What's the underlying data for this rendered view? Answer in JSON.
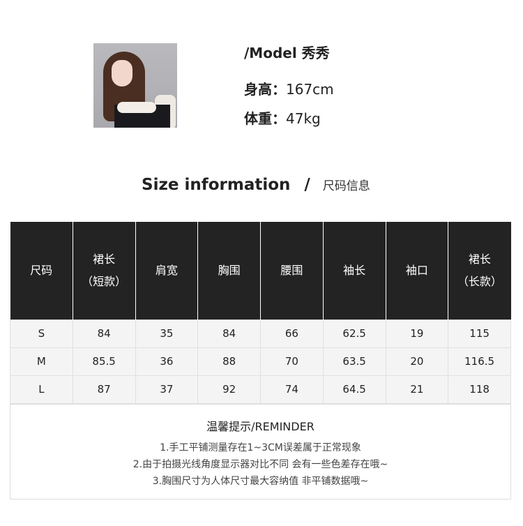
{
  "model": {
    "name": "/Model 秀秀",
    "height_label": "身高：",
    "height": "167cm",
    "weight_label": "体重：",
    "weight": "47kg"
  },
  "section": {
    "title": "Size information",
    "separator": "/",
    "subtitle": "尺码信息"
  },
  "table": {
    "headers": [
      "尺码",
      "裙长\n（短款）",
      "肩宽",
      "胸围",
      "腰围",
      "袖长",
      "袖口",
      "裙长\n（长款）"
    ],
    "rows": [
      [
        "S",
        "84",
        "35",
        "84",
        "66",
        "62.5",
        "19",
        "115"
      ],
      [
        "M",
        "85.5",
        "36",
        "88",
        "70",
        "63.5",
        "20",
        "116.5"
      ],
      [
        "L",
        "87",
        "37",
        "92",
        "74",
        "64.5",
        "21",
        "118"
      ]
    ]
  },
  "reminder": {
    "title": "温馨提示/REMINDER",
    "lines": [
      "1.手工平铺测量存在1~3CM误差属于正常现象",
      "2.由于拍摄光线角度显示器对比不同 会有一些色差存在哦~",
      "3.胸围尺寸为人体尺寸最大容纳值 非平铺数据哦~"
    ]
  }
}
